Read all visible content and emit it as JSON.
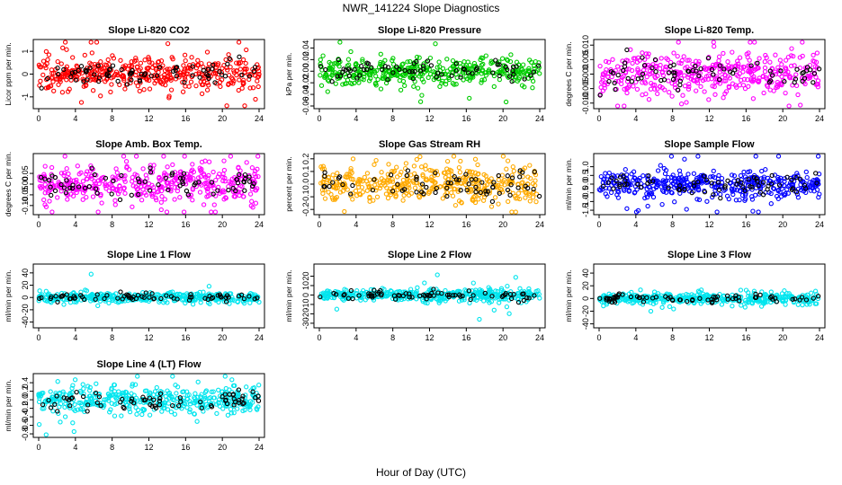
{
  "figure": {
    "title": "NWR_141224  Slope Diagnostics",
    "xlabel": "Hour of Day (UTC)"
  },
  "chart_data": [
    {
      "type": "scatter",
      "title": "Slope Li-820 CO2",
      "ylabel": "Licor ppm per min.",
      "color": "#ff0000",
      "xlim": [
        0,
        24
      ],
      "xticks": [
        "0",
        "4",
        "8",
        "12",
        "16",
        "20",
        "24"
      ],
      "ylim": [
        -1.4,
        1.4
      ],
      "yticks": [
        -1,
        0,
        1
      ],
      "ytick_labels": [
        "-1",
        "0",
        "1"
      ],
      "spread": 0.35
    },
    {
      "type": "scatter",
      "title": "Slope Li-820 Pressure",
      "ylabel": "kPa per min.",
      "color": "#00cc00",
      "xlim": [
        0,
        24
      ],
      "xticks": [
        "0",
        "4",
        "8",
        "12",
        "16",
        "20",
        "24"
      ],
      "ylim": [
        -0.06,
        0.05
      ],
      "yticks": [
        -0.06,
        -0.04,
        -0.02,
        0.0,
        0.02,
        0.04
      ],
      "ytick_labels": [
        "-0.06",
        "-0.04",
        "-0.02",
        "0.00",
        "0.02",
        "0.04"
      ],
      "spread": 0.012
    },
    {
      "type": "scatter",
      "title": "Slope Li-820 Temp.",
      "ylabel": "degrees C per min.",
      "color": "#ff00ff",
      "xlim": [
        0,
        24
      ],
      "xticks": [
        "0",
        "4",
        "8",
        "12",
        "16",
        "20",
        "24"
      ],
      "ylim": [
        -0.011,
        0.011
      ],
      "yticks": [
        -0.01,
        -0.005,
        0.0,
        0.005,
        0.01
      ],
      "ytick_labels": [
        "-0.010",
        "-0.005",
        "0.000",
        "0.005",
        "0.010"
      ],
      "spread": 0.0035
    },
    {
      "type": "scatter",
      "title": "Slope Amb. Box Temp.",
      "ylabel": "degrees C per min.",
      "color": "#ff00ff",
      "xlim": [
        0,
        24
      ],
      "xticks": [
        "0",
        "4",
        "8",
        "12",
        "16",
        "20",
        "24"
      ],
      "ylim": [
        -0.13,
        0.13
      ],
      "yticks": [
        -0.1,
        -0.05,
        0.0,
        0.05
      ],
      "ytick_labels": [
        "-0.10",
        "-0.05",
        "0.00",
        "0.05"
      ],
      "spread": 0.04
    },
    {
      "type": "scatter",
      "title": "Slope Gas Stream RH",
      "ylabel": "percent per min.",
      "color": "#ffaa00",
      "xlim": [
        0,
        24
      ],
      "xticks": [
        "0",
        "4",
        "8",
        "12",
        "16",
        "20",
        "24"
      ],
      "ylim": [
        -0.22,
        0.22
      ],
      "yticks": [
        -0.2,
        -0.1,
        0.0,
        0.1,
        0.2
      ],
      "ytick_labels": [
        "-0.2",
        "-0.1",
        "0.0",
        "0.1",
        "0.2"
      ],
      "spread": 0.07
    },
    {
      "type": "scatter",
      "title": "Slope Sample Flow",
      "ylabel": "ml/min per min.",
      "color": "#0000ff",
      "xlim": [
        0,
        24
      ],
      "xticks": [
        "0",
        "4",
        "8",
        "12",
        "16",
        "20",
        "24"
      ],
      "ylim": [
        -1.6,
        1.6
      ],
      "yticks": [
        -1.5,
        -1.0,
        -0.5,
        0.0,
        0.5,
        1.0
      ],
      "ytick_labels": [
        "-1.5",
        "-1.0",
        "-0.5",
        "0.0",
        "0.5",
        "1.0"
      ],
      "spread": 0.4
    },
    {
      "type": "scatter",
      "title": "Slope Line 1 Flow",
      "ylabel": "ml/min per min.",
      "color": "#00e5ee",
      "xlim": [
        0,
        24
      ],
      "xticks": [
        "0",
        "4",
        "8",
        "12",
        "16",
        "20",
        "24"
      ],
      "ylim": [
        -45,
        50
      ],
      "yticks": [
        -40,
        -20,
        0,
        20,
        40
      ],
      "ytick_labels": [
        "-40",
        "-20",
        "0",
        "20",
        "40"
      ],
      "spread": 4
    },
    {
      "type": "scatter",
      "title": "Slope Line 2 Flow",
      "ylabel": "ml/min per min.",
      "color": "#00e5ee",
      "xlim": [
        0,
        24
      ],
      "xticks": [
        "0",
        "4",
        "8",
        "12",
        "16",
        "20",
        "24"
      ],
      "ylim": [
        -32,
        30
      ],
      "yticks": [
        -30,
        -20,
        -10,
        0,
        10,
        20
      ],
      "ytick_labels": [
        "-30",
        "-20",
        "-10",
        "0",
        "10",
        "20"
      ],
      "spread": 3
    },
    {
      "type": "scatter",
      "title": "Slope Line 3 Flow",
      "ylabel": "ml/min per min.",
      "color": "#00e5ee",
      "xlim": [
        0,
        24
      ],
      "xticks": [
        "0",
        "4",
        "8",
        "12",
        "16",
        "20",
        "24"
      ],
      "ylim": [
        -42,
        50
      ],
      "yticks": [
        -40,
        -20,
        0,
        20,
        40
      ],
      "ytick_labels": [
        "-40",
        "-20",
        "0",
        "20",
        "40"
      ],
      "spread": 4
    },
    {
      "type": "scatter",
      "title": "Slope Line 4 (LT) Flow",
      "ylabel": "ml/min per min.",
      "color": "#00e5ee",
      "xlim": [
        0,
        24
      ],
      "xticks": [
        "0",
        "4",
        "8",
        "12",
        "16",
        "20",
        "24"
      ],
      "ylim": [
        -0.82,
        0.55
      ],
      "yticks": [
        -0.8,
        -0.6,
        -0.4,
        -0.2,
        0.0,
        0.2,
        0.4
      ],
      "ytick_labels": [
        "-0.8",
        "-0.6",
        "-0.4",
        "-0.2",
        "0.0",
        "0.2",
        "0.4"
      ],
      "spread": 0.16
    }
  ]
}
